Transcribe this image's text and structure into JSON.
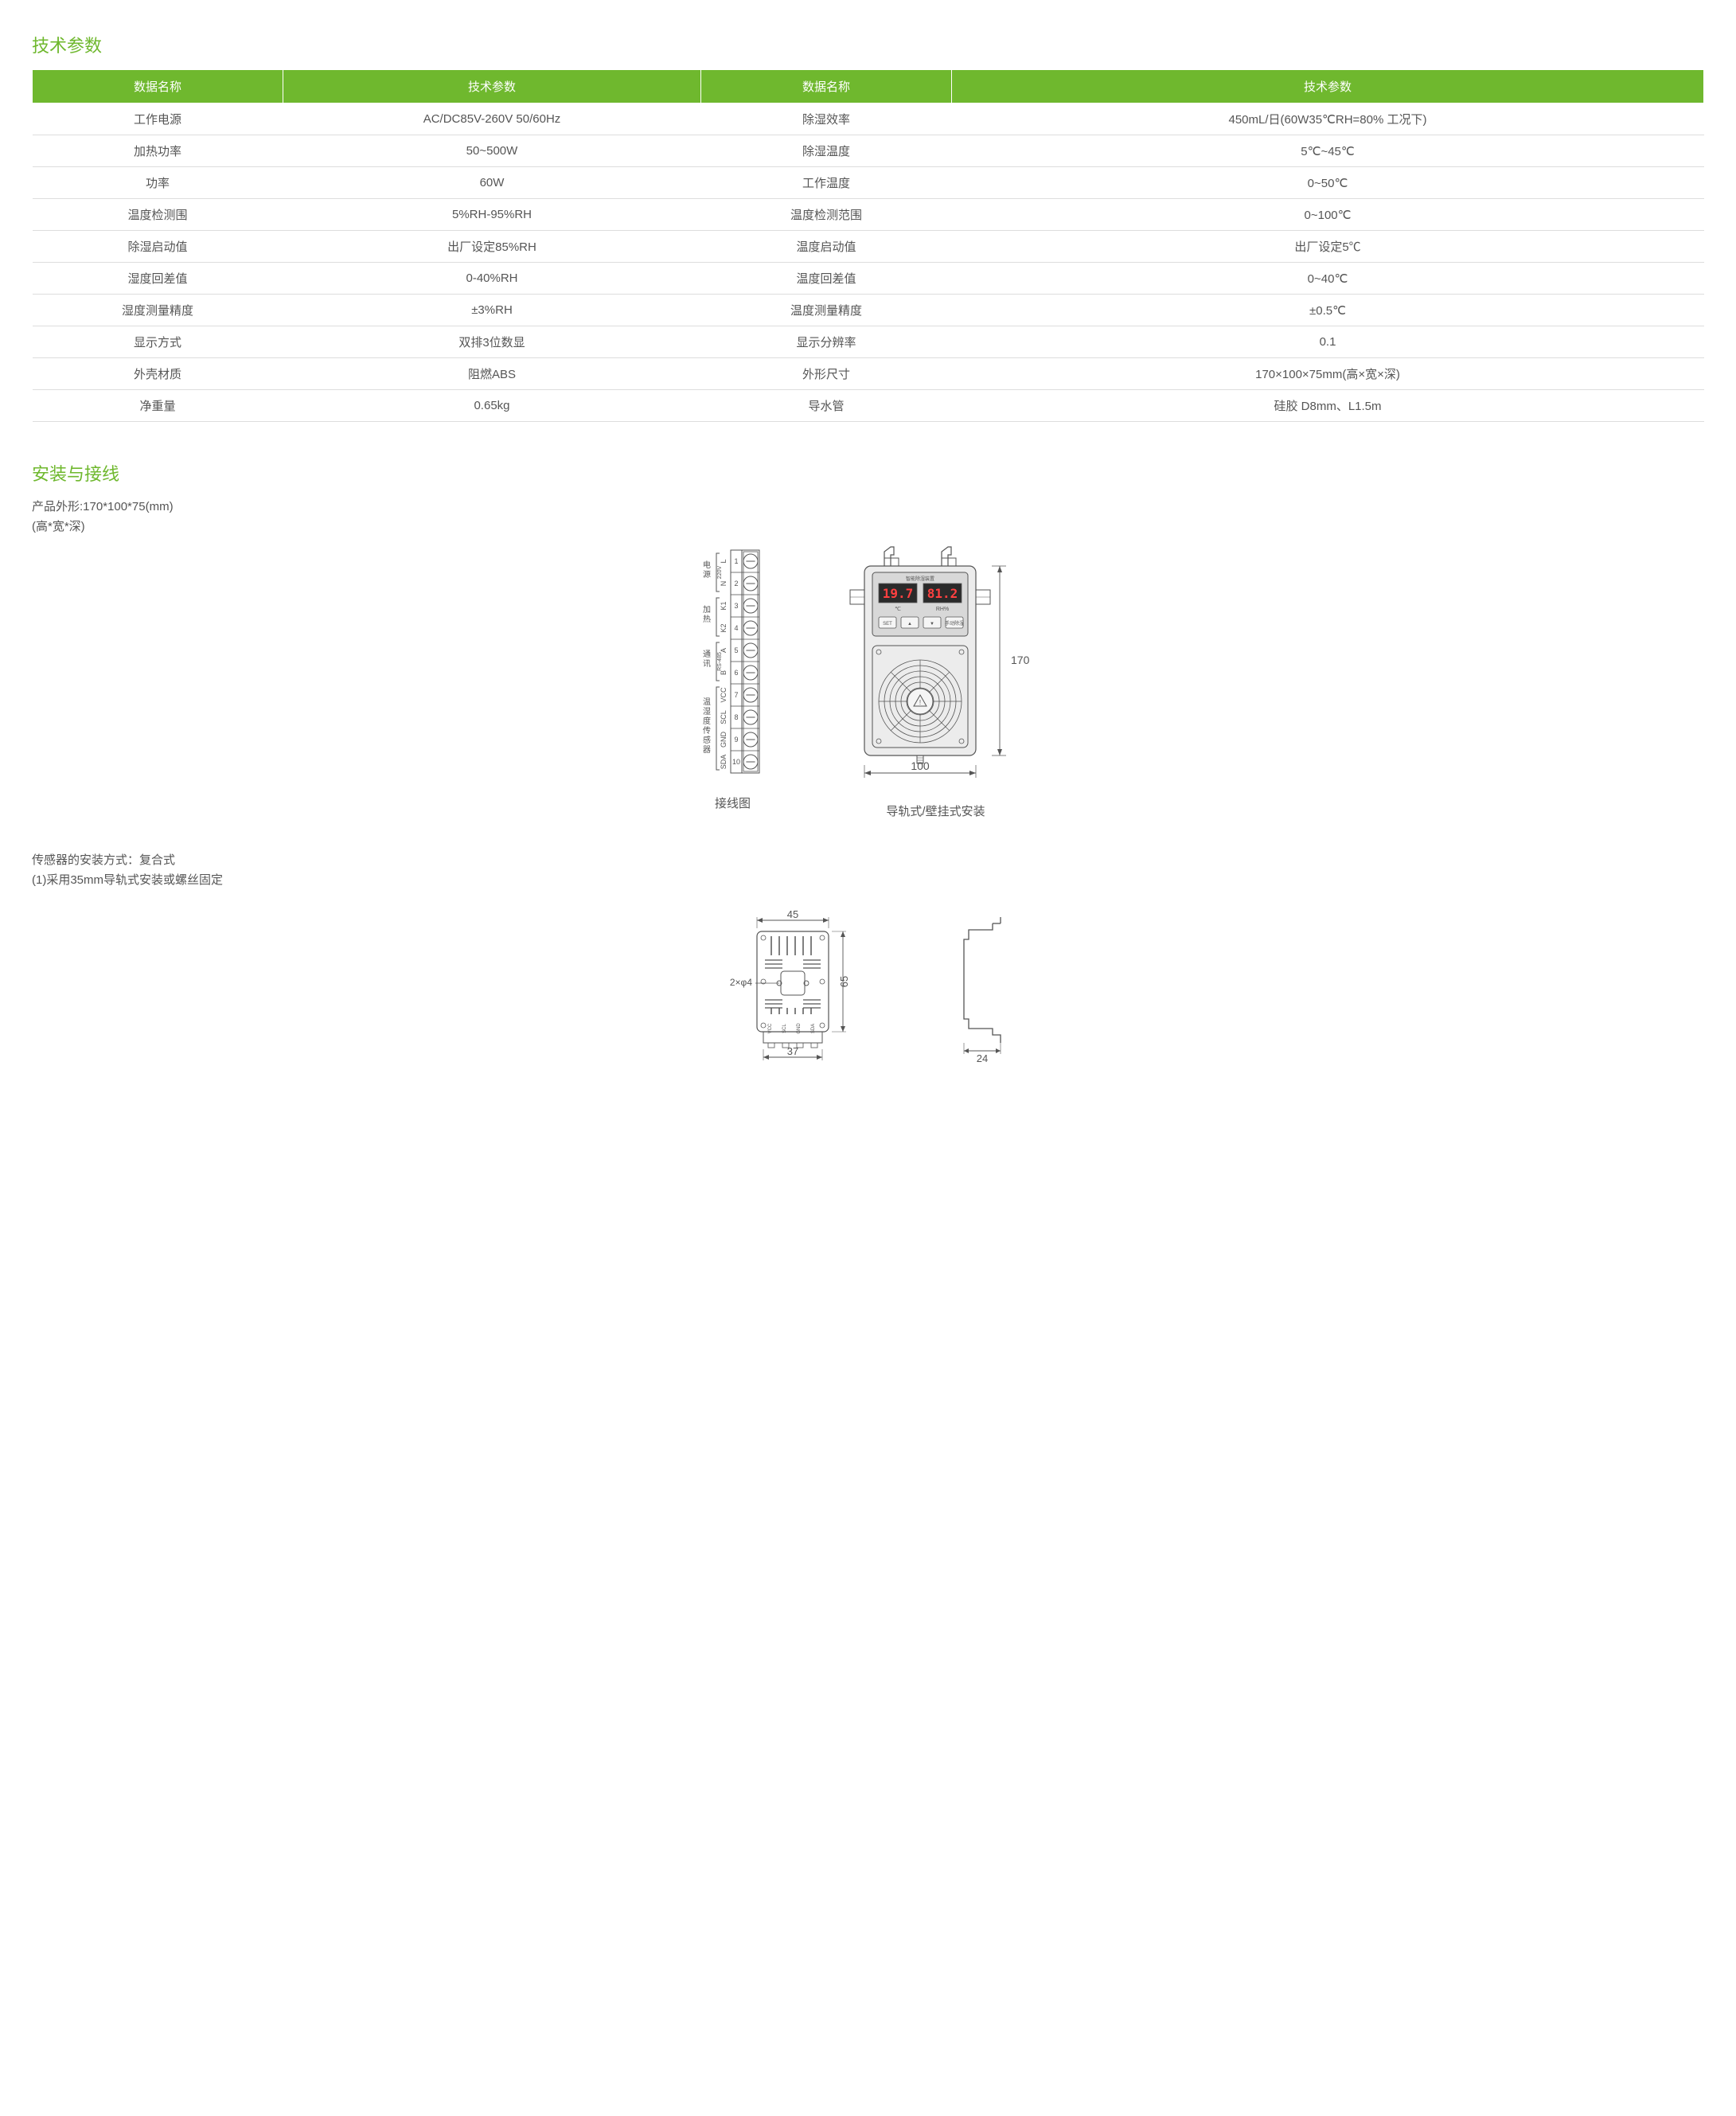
{
  "colors": {
    "accent": "#6fb82e",
    "header_text": "#ffffff",
    "body_text": "#555555",
    "border": "#dddddd",
    "stroke": "#555555",
    "digit_red": "#ff4040",
    "device_fill": "#ececec",
    "device_panel": "#d8d8d8"
  },
  "section1_title": "技术参数",
  "table": {
    "headers": [
      "数据名称",
      "技术参数",
      "数据名称",
      "技术参数"
    ],
    "rows": [
      [
        "工作电源",
        "AC/DC85V-260V 50/60Hz",
        "除湿效率",
        "450mL/日(60W35℃RH=80% 工况下)"
      ],
      [
        "加热功率",
        "50~500W",
        "除湿温度",
        "5℃~45℃"
      ],
      [
        "功率",
        "60W",
        "工作温度",
        "0~50℃"
      ],
      [
        "温度检测围",
        "5%RH-95%RH",
        "温度检测范围",
        "0~100℃"
      ],
      [
        "除湿启动值",
        "出厂设定85%RH",
        "温度启动值",
        "出厂设定5℃"
      ],
      [
        "湿度回差值",
        "0-40%RH",
        "温度回差值",
        "0~40℃"
      ],
      [
        "湿度测量精度",
        "±3%RH",
        "温度测量精度",
        "±0.5℃"
      ],
      [
        "显示方式",
        "双排3位数显",
        "显示分辨率",
        "0.1"
      ],
      [
        "外壳材质",
        "阻燃ABS",
        "外形尺寸",
        "170×100×75mm(高×宽×深)"
      ],
      [
        "净重量",
        "0.65kg",
        "导水管",
        "硅胶 D8mm、L1.5m"
      ]
    ]
  },
  "section2_title": "安装与接线",
  "prod_dim_line1": "产品外形:170*100*75(mm)",
  "prod_dim_line2": "(高*宽*深)",
  "wiring_caption": "接线图",
  "device_caption": "导轨式/壁挂式安装",
  "terminals": {
    "groups": [
      {
        "name": "电源",
        "sub": "220V",
        "pins": [
          {
            "n": "1",
            "l": "L"
          },
          {
            "n": "2",
            "l": "N"
          }
        ]
      },
      {
        "name": "加热",
        "sub": "",
        "pins": [
          {
            "n": "3",
            "l": "K1"
          },
          {
            "n": "4",
            "l": "K2"
          }
        ]
      },
      {
        "name": "通讯",
        "sub": "RS-485",
        "pins": [
          {
            "n": "5",
            "l": "A"
          },
          {
            "n": "6",
            "l": "B"
          }
        ]
      },
      {
        "name": "温湿度传感器",
        "sub": "",
        "pins": [
          {
            "n": "7",
            "l": "VCC"
          },
          {
            "n": "8",
            "l": "SCL"
          },
          {
            "n": "9",
            "l": "GND"
          },
          {
            "n": "10",
            "l": "SDA"
          }
        ]
      }
    ]
  },
  "device": {
    "title": "智能除湿装置",
    "disp1": "19.7",
    "disp2": "81.2",
    "unit1": "℃",
    "unit2": "RH%",
    "btns": [
      "SET",
      "▲",
      "▼",
      "手动除湿"
    ],
    "dim_h": "170",
    "dim_w": "100"
  },
  "sensor_line1": "传感器的安装方式：复合式",
  "sensor_line2": "(1)采用35mm导轨式安装或螺丝固定",
  "sensor": {
    "dim_top": "45",
    "dim_right": "65",
    "dim_bottom": "37",
    "hole_label": "2×φ4",
    "pins": [
      "VCC",
      "SCL",
      "GND",
      "SDA"
    ],
    "rail_dim": "24"
  }
}
